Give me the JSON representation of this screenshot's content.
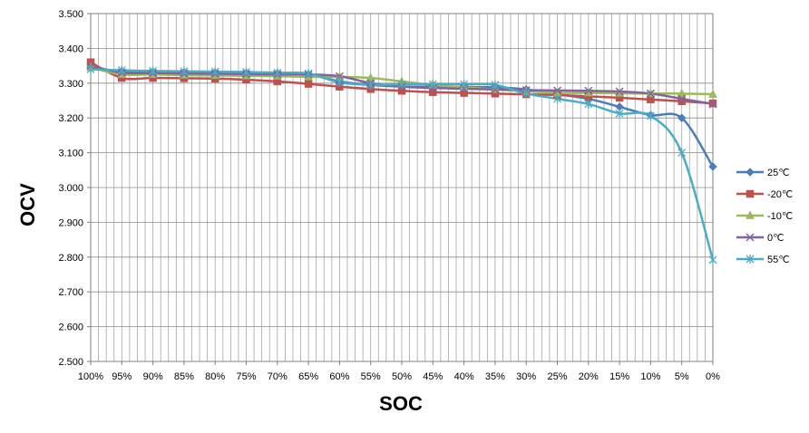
{
  "chart_data": {
    "type": "line",
    "title": "",
    "xlabel": "SOC",
    "ylabel": "OCV",
    "ylim": [
      2.5,
      3.5
    ],
    "y_ticks": [
      "2.500",
      "2.600",
      "2.700",
      "2.800",
      "2.900",
      "3.000",
      "3.100",
      "3.200",
      "3.300",
      "3.400",
      "3.500"
    ],
    "y_tick_values": [
      2.5,
      2.6,
      2.7,
      2.8,
      2.9,
      3.0,
      3.1,
      3.2,
      3.3,
      3.4,
      3.5
    ],
    "categories": [
      "100%",
      "95%",
      "90%",
      "85%",
      "80%",
      "75%",
      "70%",
      "65%",
      "60%",
      "55%",
      "50%",
      "45%",
      "40%",
      "35%",
      "30%",
      "25%",
      "20%",
      "15%",
      "10%",
      "5%",
      "0%"
    ],
    "minor_grid_per_category": 4,
    "legend_position": "right",
    "grid": true,
    "series": [
      {
        "name": "25℃",
        "color": "#4A7EBB",
        "marker": "diamond",
        "values": [
          3.345,
          3.334,
          3.332,
          3.331,
          3.33,
          3.329,
          3.328,
          3.325,
          3.305,
          3.295,
          3.29,
          3.29,
          3.289,
          3.288,
          3.282,
          3.268,
          3.255,
          3.232,
          3.208,
          3.2,
          3.06
        ]
      },
      {
        "name": "-20℃",
        "color": "#C0504D",
        "marker": "square",
        "values": [
          3.36,
          3.315,
          3.315,
          3.314,
          3.313,
          3.31,
          3.305,
          3.298,
          3.29,
          3.283,
          3.278,
          3.274,
          3.272,
          3.27,
          3.268,
          3.266,
          3.262,
          3.258,
          3.253,
          3.248,
          3.242
        ]
      },
      {
        "name": "-10℃",
        "color": "#9BBB59",
        "marker": "triangle",
        "values": [
          3.345,
          3.325,
          3.325,
          3.323,
          3.322,
          3.321,
          3.32,
          3.318,
          3.318,
          3.315,
          3.305,
          3.295,
          3.288,
          3.282,
          3.277,
          3.272,
          3.272,
          3.271,
          3.27,
          3.27,
          3.268
        ]
      },
      {
        "name": "0℃",
        "color": "#8064A2",
        "marker": "x",
        "values": [
          3.35,
          3.33,
          3.329,
          3.328,
          3.327,
          3.326,
          3.325,
          3.325,
          3.32,
          3.3,
          3.29,
          3.286,
          3.284,
          3.282,
          3.28,
          3.279,
          3.278,
          3.276,
          3.27,
          3.255,
          3.24
        ]
      },
      {
        "name": "55℃",
        "color": "#4BACC6",
        "marker": "star",
        "values": [
          3.34,
          3.337,
          3.335,
          3.334,
          3.333,
          3.332,
          3.33,
          3.328,
          3.302,
          3.295,
          3.297,
          3.297,
          3.297,
          3.295,
          3.27,
          3.255,
          3.24,
          3.213,
          3.206,
          3.1,
          2.792
        ]
      }
    ]
  }
}
